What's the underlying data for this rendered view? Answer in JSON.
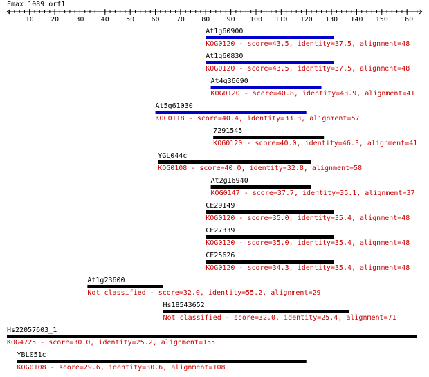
{
  "query_name": "Emax_1089_orf1",
  "axis": {
    "min": 1,
    "max": 166,
    "major_ticks": [
      10,
      20,
      30,
      40,
      50,
      60,
      70,
      80,
      90,
      100,
      110,
      120,
      130,
      140,
      150,
      160
    ],
    "minor_step": 2
  },
  "colors": {
    "text": "#000000",
    "annotation": "#cc0000",
    "bar_kog": "#0000cc",
    "bar_default": "#000000"
  },
  "hits": [
    {
      "name": "At1g60900",
      "start": 80,
      "end": 131,
      "color": "#0000cc",
      "annotation": "KOG0120 - score=43.5, identity=37.5, alignment=48"
    },
    {
      "name": "At1g60830",
      "start": 80,
      "end": 131,
      "color": "#0000cc",
      "annotation": "KOG0120 - score=43.5, identity=37.5, alignment=48"
    },
    {
      "name": "At4g36690",
      "start": 82,
      "end": 126,
      "color": "#0000cc",
      "annotation": "KOG0120 - score=40.8, identity=43.9, alignment=41"
    },
    {
      "name": "At5g61030",
      "start": 60,
      "end": 120,
      "color": "#0000cc",
      "annotation": "KOG0118 - score=40.4, identity=33.3, alignment=57"
    },
    {
      "name": "7291545",
      "start": 83,
      "end": 127,
      "color": "#000000",
      "annotation": "KOG0120 - score=40.0, identity=46.3, alignment=41"
    },
    {
      "name": "YGL044c",
      "start": 61,
      "end": 122,
      "color": "#000000",
      "annotation": "KOG0108 - score=40.0, identity=32.8, alignment=58"
    },
    {
      "name": "At2g16940",
      "start": 82,
      "end": 122,
      "color": "#000000",
      "annotation": "KOG0147 - score=37.7, identity=35.1, alignment=37"
    },
    {
      "name": "CE29149",
      "start": 80,
      "end": 131,
      "color": "#000000",
      "annotation": "KOG0120 - score=35.0, identity=35.4, alignment=48"
    },
    {
      "name": "CE27339",
      "start": 80,
      "end": 131,
      "color": "#000000",
      "annotation": "KOG0120 - score=35.0, identity=35.4, alignment=48"
    },
    {
      "name": "CE25626",
      "start": 80,
      "end": 131,
      "color": "#000000",
      "annotation": "KOG0120 - score=34.3, identity=35.4, alignment=48"
    },
    {
      "name": "At1g23600",
      "start": 33,
      "end": 63,
      "color": "#000000",
      "annotation": "Not classified - score=32.0, identity=55.2, alignment=29"
    },
    {
      "name": "Hs18543652",
      "start": 63,
      "end": 137,
      "color": "#000000",
      "annotation": "Not classified - score=32.0, identity=25.4, alignment=71"
    },
    {
      "name": "Hs22057603_1",
      "start": 1,
      "end": 164,
      "color": "#000000",
      "annotation": "KOG4725 - score=30.0, identity=25.2, alignment=155"
    },
    {
      "name": "YBL051c",
      "start": 5,
      "end": 120,
      "color": "#000000",
      "annotation": "KOG0108 - score=29.6, identity=30.6, alignment=108"
    }
  ]
}
